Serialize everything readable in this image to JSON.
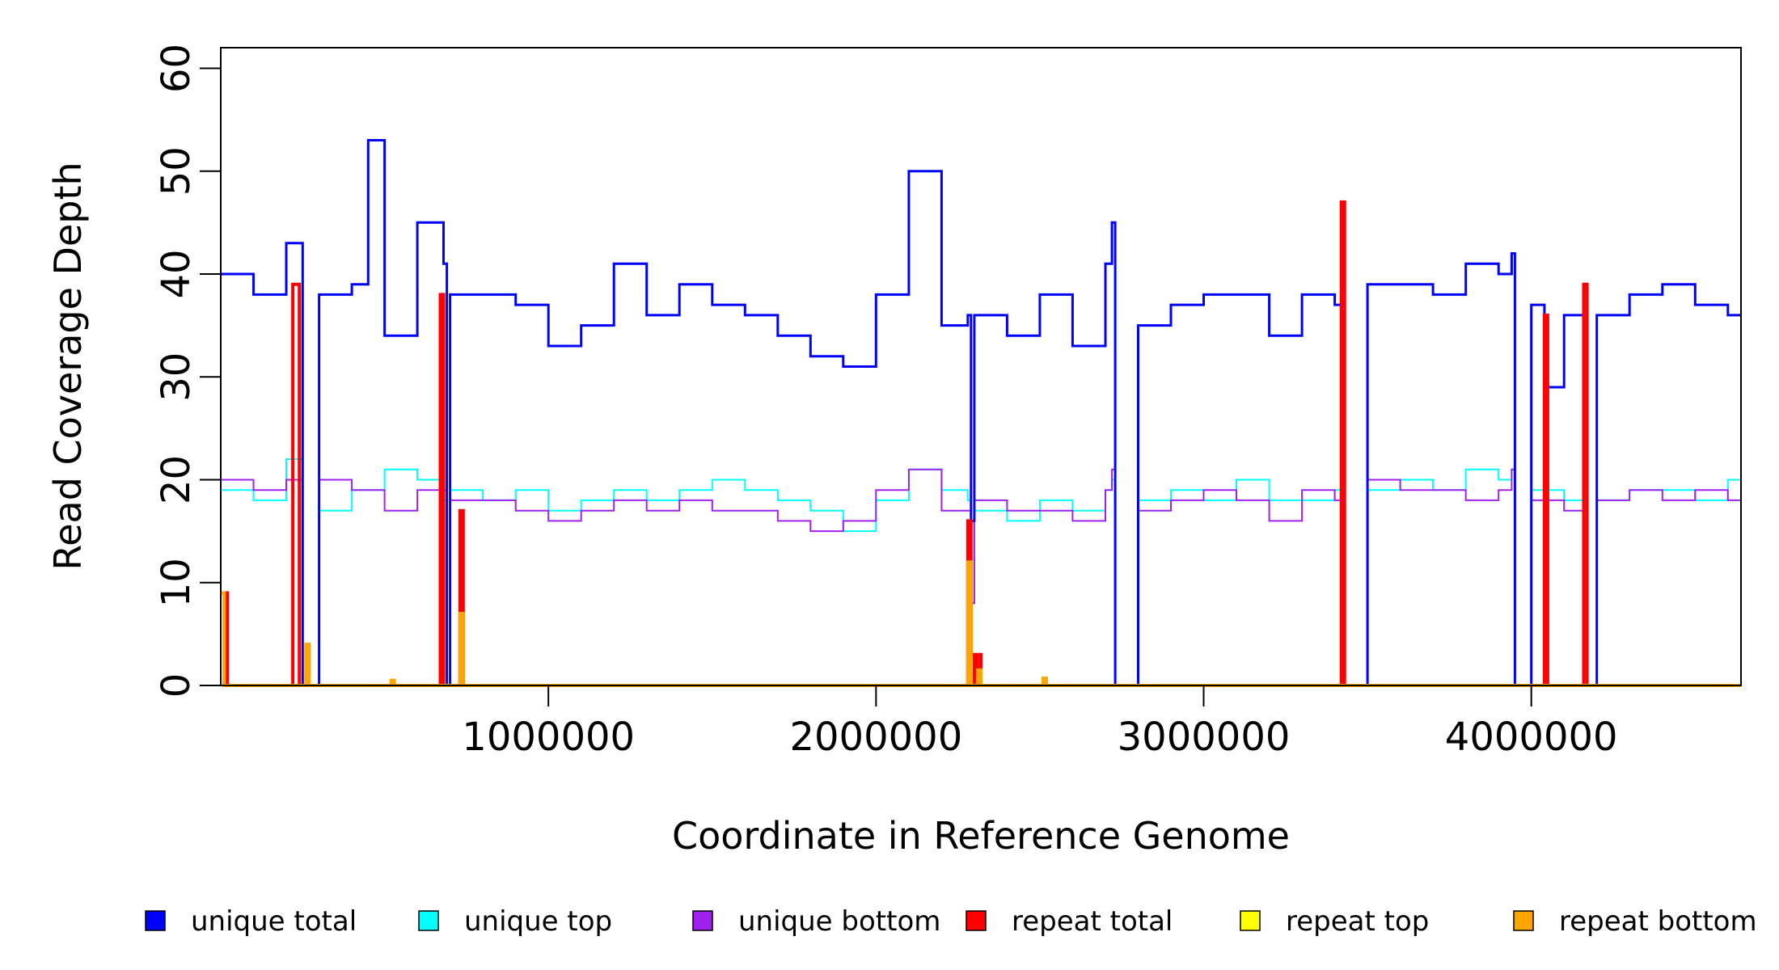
{
  "chart_data": {
    "type": "line",
    "title": "",
    "xlabel": "Coordinate in Reference Genome",
    "ylabel": "Read Coverage Depth",
    "xlim": [
      0,
      4640000
    ],
    "ylim": [
      0,
      62
    ],
    "x_ticks": [
      1000000,
      2000000,
      3000000,
      4000000
    ],
    "x_tick_labels": [
      "1000000",
      "2000000",
      "3000000",
      "4000000"
    ],
    "y_ticks": [
      0,
      10,
      20,
      30,
      40,
      50,
      60
    ],
    "y_tick_labels": [
      "0",
      "10",
      "20",
      "30",
      "40",
      "50",
      "60"
    ],
    "grid": false,
    "legend_position": "bottom",
    "step_plot": true,
    "series": [
      {
        "name": "unique total",
        "color": "#0000ff",
        "x": [
          0,
          100000,
          200000,
          250000,
          300000,
          400000,
          450000,
          500000,
          600000,
          680000,
          690000,
          700000,
          800000,
          900000,
          1000000,
          1100000,
          1200000,
          1300000,
          1400000,
          1500000,
          1600000,
          1700000,
          1800000,
          1900000,
          2000000,
          2100000,
          2200000,
          2280000,
          2290000,
          2300000,
          2400000,
          2500000,
          2600000,
          2700000,
          2720000,
          2730000,
          2800000,
          2900000,
          3000000,
          3100000,
          3200000,
          3300000,
          3400000,
          3420000,
          3430000,
          3500000,
          3600000,
          3700000,
          3800000,
          3900000,
          3940000,
          3950000,
          4000000,
          4040000,
          4100000,
          4160000,
          4200000,
          4300000,
          4400000,
          4500000,
          4600000
        ],
        "values": [
          40,
          38,
          43,
          0,
          38,
          39,
          53,
          34,
          45,
          41,
          0,
          38,
          38,
          37,
          33,
          35,
          41,
          36,
          39,
          37,
          36,
          34,
          32,
          31,
          38,
          50,
          35,
          36,
          16,
          36,
          34,
          38,
          33,
          41,
          45,
          0,
          35,
          37,
          38,
          38,
          34,
          38,
          37,
          40,
          0,
          39,
          39,
          38,
          41,
          40,
          42,
          0,
          37,
          29,
          36,
          0,
          36,
          38,
          39,
          37,
          36
        ]
      },
      {
        "name": "unique top",
        "color": "#00ffff",
        "x": [
          0,
          100000,
          200000,
          250000,
          300000,
          400000,
          500000,
          600000,
          680000,
          690000,
          700000,
          800000,
          900000,
          1000000,
          1100000,
          1200000,
          1300000,
          1400000,
          1500000,
          1600000,
          1700000,
          1800000,
          1900000,
          2000000,
          2100000,
          2200000,
          2280000,
          2290000,
          2300000,
          2400000,
          2500000,
          2600000,
          2700000,
          2720000,
          2730000,
          2800000,
          2900000,
          3000000,
          3100000,
          3200000,
          3300000,
          3400000,
          3420000,
          3430000,
          3500000,
          3600000,
          3700000,
          3800000,
          3900000,
          3940000,
          3950000,
          4000000,
          4100000,
          4160000,
          4200000,
          4300000,
          4400000,
          4500000,
          4600000
        ],
        "values": [
          19,
          18,
          22,
          0,
          17,
          19,
          21,
          20,
          18,
          0,
          19,
          18,
          19,
          17,
          18,
          19,
          18,
          19,
          20,
          19,
          18,
          17,
          15,
          18,
          21,
          19,
          18,
          8,
          17,
          16,
          18,
          17,
          19,
          20,
          0,
          18,
          19,
          18,
          20,
          18,
          18,
          19,
          18,
          0,
          19,
          20,
          19,
          21,
          20,
          21,
          0,
          19,
          18,
          0,
          18,
          19,
          19,
          18,
          20
        ]
      },
      {
        "name": "unique bottom",
        "color": "#a020f0",
        "x": [
          0,
          100000,
          200000,
          250000,
          300000,
          400000,
          500000,
          600000,
          680000,
          690000,
          700000,
          800000,
          900000,
          1000000,
          1100000,
          1200000,
          1300000,
          1400000,
          1500000,
          1600000,
          1700000,
          1800000,
          1900000,
          2000000,
          2100000,
          2200000,
          2280000,
          2290000,
          2300000,
          2400000,
          2500000,
          2600000,
          2700000,
          2720000,
          2730000,
          2800000,
          2900000,
          3000000,
          3100000,
          3200000,
          3300000,
          3400000,
          3420000,
          3430000,
          3500000,
          3600000,
          3700000,
          3800000,
          3900000,
          3940000,
          3950000,
          4000000,
          4100000,
          4160000,
          4200000,
          4300000,
          4400000,
          4500000,
          4600000
        ],
        "values": [
          20,
          19,
          20,
          0,
          20,
          19,
          17,
          19,
          19,
          0,
          18,
          18,
          17,
          16,
          17,
          18,
          17,
          18,
          17,
          17,
          16,
          15,
          16,
          19,
          21,
          17,
          17,
          8,
          18,
          17,
          17,
          16,
          19,
          21,
          0,
          17,
          18,
          19,
          18,
          16,
          19,
          18,
          19,
          0,
          20,
          19,
          19,
          18,
          19,
          21,
          0,
          18,
          17,
          0,
          18,
          19,
          18,
          19,
          18
        ]
      },
      {
        "name": "repeat total",
        "color": "#ff0000",
        "x": [
          0,
          20000,
          30000,
          220000,
          240000,
          250000,
          670000,
          680000,
          690000,
          730000,
          740000,
          2280000,
          2290000,
          2300000,
          2310000,
          2320000,
          3420000,
          3430000,
          3440000,
          4040000,
          4050000,
          4160000,
          4170000,
          4180000
        ],
        "values": [
          9,
          0,
          0,
          39,
          0,
          0,
          38,
          0,
          0,
          17,
          0,
          16,
          3,
          0,
          3,
          0,
          47,
          0,
          0,
          36,
          0,
          39,
          0,
          0
        ]
      },
      {
        "name": "repeat top",
        "color": "#ffff00",
        "x": [
          0,
          4640000
        ],
        "values": [
          0,
          0
        ]
      },
      {
        "name": "repeat bottom",
        "color": "#ffa500",
        "x": [
          0,
          10000,
          20000,
          260000,
          270000,
          280000,
          520000,
          530000,
          540000,
          730000,
          740000,
          750000,
          2280000,
          2290000,
          2300000,
          2310000,
          2320000,
          2510000,
          2520000,
          2530000,
          4640000
        ],
        "values": [
          9,
          0,
          0,
          4,
          0,
          0,
          0.5,
          0,
          0,
          7,
          0,
          0,
          12,
          0,
          0,
          1.5,
          0,
          0.7,
          0,
          0,
          0
        ]
      }
    ]
  },
  "legend": {
    "items": [
      {
        "label": "unique total",
        "color": "#0000ff"
      },
      {
        "label": "unique top",
        "color": "#00ffff"
      },
      {
        "label": "unique bottom",
        "color": "#a020f0"
      },
      {
        "label": "repeat total",
        "color": "#ff0000"
      },
      {
        "label": "repeat top",
        "color": "#ffff00"
      },
      {
        "label": "repeat bottom",
        "color": "#ffa500"
      }
    ]
  }
}
